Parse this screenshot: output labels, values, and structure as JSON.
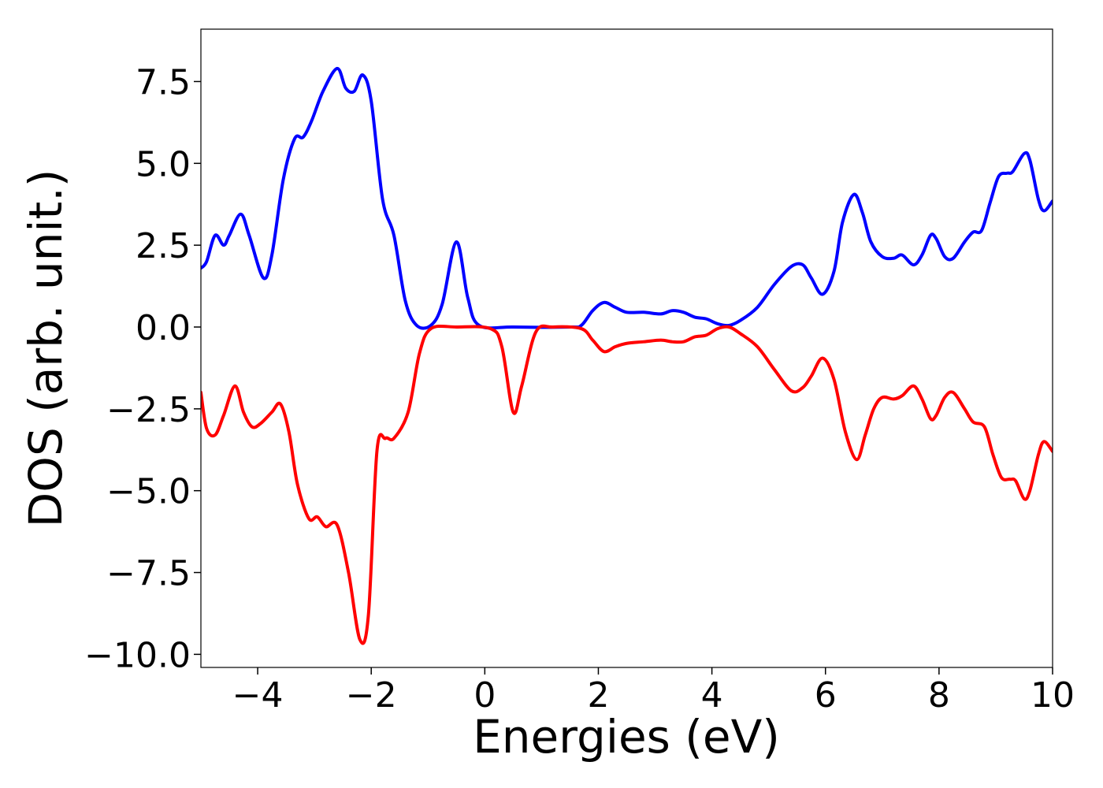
{
  "chart_data": {
    "type": "line",
    "xlabel": "Energies (eV)",
    "ylabel": "DOS (arb. unit.)",
    "xlim": [
      -5,
      10
    ],
    "ylim": [
      -10.4,
      9.1
    ],
    "xticks": [
      -4,
      -2,
      0,
      2,
      4,
      6,
      8,
      10
    ],
    "xtick_labels": [
      "−4",
      "−2",
      "0",
      "2",
      "4",
      "6",
      "8",
      "10"
    ],
    "yticks": [
      7.5,
      5.0,
      2.5,
      0.0,
      -2.5,
      -5.0,
      -7.5,
      -10.0
    ],
    "ytick_labels": [
      "7.5",
      "5.0",
      "2.5",
      "0.0",
      "−2.5",
      "−5.0",
      "−7.5",
      "−10.0"
    ],
    "grid": false,
    "series": [
      {
        "color": "#0000ff",
        "points": [
          [
            -5.0,
            1.8
          ],
          [
            -4.9,
            2.0
          ],
          [
            -4.75,
            2.8
          ],
          [
            -4.6,
            2.5
          ],
          [
            -4.5,
            2.8
          ],
          [
            -4.3,
            3.45
          ],
          [
            -4.15,
            2.8
          ],
          [
            -3.9,
            1.5
          ],
          [
            -3.75,
            2.2
          ],
          [
            -3.55,
            4.5
          ],
          [
            -3.35,
            5.75
          ],
          [
            -3.2,
            5.8
          ],
          [
            -3.05,
            6.3
          ],
          [
            -2.85,
            7.2
          ],
          [
            -2.6,
            7.9
          ],
          [
            -2.45,
            7.3
          ],
          [
            -2.3,
            7.2
          ],
          [
            -2.15,
            7.7
          ],
          [
            -2.0,
            6.9
          ],
          [
            -1.8,
            3.9
          ],
          [
            -1.6,
            2.8
          ],
          [
            -1.4,
            0.8
          ],
          [
            -1.2,
            0.05
          ],
          [
            -0.95,
            0.05
          ],
          [
            -0.75,
            0.7
          ],
          [
            -0.5,
            2.6
          ],
          [
            -0.3,
            0.9
          ],
          [
            -0.1,
            0.05
          ],
          [
            0.5,
            0.0
          ],
          [
            1.5,
            0.0
          ],
          [
            1.7,
            0.05
          ],
          [
            1.9,
            0.5
          ],
          [
            2.1,
            0.75
          ],
          [
            2.3,
            0.6
          ],
          [
            2.5,
            0.45
          ],
          [
            2.8,
            0.45
          ],
          [
            3.1,
            0.4
          ],
          [
            3.3,
            0.5
          ],
          [
            3.5,
            0.45
          ],
          [
            3.7,
            0.3
          ],
          [
            3.9,
            0.25
          ],
          [
            4.1,
            0.1
          ],
          [
            4.3,
            0.05
          ],
          [
            4.5,
            0.2
          ],
          [
            4.8,
            0.6
          ],
          [
            5.1,
            1.3
          ],
          [
            5.4,
            1.85
          ],
          [
            5.6,
            1.9
          ],
          [
            5.75,
            1.5
          ],
          [
            5.95,
            1.0
          ],
          [
            6.15,
            1.7
          ],
          [
            6.3,
            3.2
          ],
          [
            6.5,
            4.05
          ],
          [
            6.65,
            3.5
          ],
          [
            6.8,
            2.6
          ],
          [
            7.0,
            2.15
          ],
          [
            7.2,
            2.1
          ],
          [
            7.35,
            2.2
          ],
          [
            7.55,
            1.9
          ],
          [
            7.7,
            2.2
          ],
          [
            7.85,
            2.8
          ],
          [
            7.95,
            2.7
          ],
          [
            8.1,
            2.15
          ],
          [
            8.25,
            2.1
          ],
          [
            8.45,
            2.6
          ],
          [
            8.6,
            2.9
          ],
          [
            8.75,
            2.95
          ],
          [
            8.9,
            3.8
          ],
          [
            9.05,
            4.6
          ],
          [
            9.2,
            4.7
          ],
          [
            9.3,
            4.75
          ],
          [
            9.5,
            5.3
          ],
          [
            9.6,
            5.1
          ],
          [
            9.75,
            3.9
          ],
          [
            9.85,
            3.55
          ],
          [
            10.0,
            3.85
          ]
        ]
      },
      {
        "color": "#ff0000",
        "points": [
          [
            -5.0,
            -2.0
          ],
          [
            -4.9,
            -3.1
          ],
          [
            -4.75,
            -3.3
          ],
          [
            -4.6,
            -2.7
          ],
          [
            -4.4,
            -1.8
          ],
          [
            -4.25,
            -2.6
          ],
          [
            -4.1,
            -3.05
          ],
          [
            -3.95,
            -2.95
          ],
          [
            -3.75,
            -2.6
          ],
          [
            -3.6,
            -2.35
          ],
          [
            -3.45,
            -3.2
          ],
          [
            -3.3,
            -4.8
          ],
          [
            -3.1,
            -5.85
          ],
          [
            -2.95,
            -5.8
          ],
          [
            -2.8,
            -6.1
          ],
          [
            -2.6,
            -6.05
          ],
          [
            -2.4,
            -7.5
          ],
          [
            -2.2,
            -9.55
          ],
          [
            -2.05,
            -8.8
          ],
          [
            -1.9,
            -3.8
          ],
          [
            -1.75,
            -3.4
          ],
          [
            -1.6,
            -3.4
          ],
          [
            -1.35,
            -2.6
          ],
          [
            -1.15,
            -0.8
          ],
          [
            -0.95,
            -0.05
          ],
          [
            -0.5,
            0.0
          ],
          [
            0.1,
            -0.05
          ],
          [
            0.3,
            -0.6
          ],
          [
            0.5,
            -2.6
          ],
          [
            0.65,
            -1.8
          ],
          [
            0.9,
            -0.15
          ],
          [
            1.2,
            0.0
          ],
          [
            1.7,
            -0.05
          ],
          [
            1.9,
            -0.4
          ],
          [
            2.1,
            -0.75
          ],
          [
            2.3,
            -0.6
          ],
          [
            2.5,
            -0.5
          ],
          [
            2.8,
            -0.45
          ],
          [
            3.1,
            -0.4
          ],
          [
            3.3,
            -0.45
          ],
          [
            3.5,
            -0.45
          ],
          [
            3.7,
            -0.3
          ],
          [
            3.9,
            -0.25
          ],
          [
            4.1,
            -0.05
          ],
          [
            4.3,
            0.0
          ],
          [
            4.5,
            -0.2
          ],
          [
            4.8,
            -0.6
          ],
          [
            5.1,
            -1.3
          ],
          [
            5.4,
            -1.95
          ],
          [
            5.6,
            -1.85
          ],
          [
            5.75,
            -1.5
          ],
          [
            5.95,
            -0.95
          ],
          [
            6.15,
            -1.6
          ],
          [
            6.35,
            -3.2
          ],
          [
            6.55,
            -4.05
          ],
          [
            6.7,
            -3.3
          ],
          [
            6.85,
            -2.5
          ],
          [
            7.0,
            -2.15
          ],
          [
            7.2,
            -2.2
          ],
          [
            7.35,
            -2.1
          ],
          [
            7.55,
            -1.8
          ],
          [
            7.7,
            -2.2
          ],
          [
            7.85,
            -2.8
          ],
          [
            7.95,
            -2.7
          ],
          [
            8.1,
            -2.15
          ],
          [
            8.25,
            -2.0
          ],
          [
            8.45,
            -2.5
          ],
          [
            8.6,
            -2.9
          ],
          [
            8.8,
            -3.05
          ],
          [
            8.95,
            -3.9
          ],
          [
            9.1,
            -4.6
          ],
          [
            9.25,
            -4.65
          ],
          [
            9.35,
            -4.7
          ],
          [
            9.5,
            -5.25
          ],
          [
            9.6,
            -5.0
          ],
          [
            9.75,
            -3.9
          ],
          [
            9.85,
            -3.5
          ],
          [
            10.0,
            -3.8
          ]
        ]
      }
    ]
  }
}
